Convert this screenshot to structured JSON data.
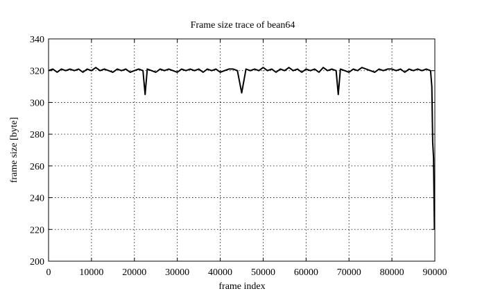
{
  "chart_data": {
    "type": "line",
    "title": "Frame size trace of bean64",
    "x_label": "frame index",
    "y_label": "frame size [byte]",
    "x": [
      0,
      1000,
      2000,
      3000,
      4000,
      5000,
      6000,
      7000,
      8000,
      9000,
      10000,
      11000,
      12000,
      13000,
      14000,
      15000,
      16000,
      17000,
      18000,
      19000,
      20000,
      21000,
      22000,
      22500,
      23000,
      24000,
      25000,
      26000,
      27000,
      28000,
      29000,
      30000,
      31000,
      32000,
      33000,
      34000,
      35000,
      36000,
      37000,
      38000,
      39000,
      40000,
      41000,
      42000,
      43000,
      44000,
      45000,
      46000,
      47000,
      48000,
      49000,
      50000,
      51000,
      52000,
      53000,
      54000,
      55000,
      56000,
      57000,
      58000,
      59000,
      60000,
      61000,
      62000,
      63000,
      64000,
      65000,
      66000,
      67000,
      67500,
      68000,
      69000,
      70000,
      71000,
      72000,
      73000,
      74000,
      75000,
      76000,
      77000,
      78000,
      79000,
      80000,
      81000,
      82000,
      83000,
      84000,
      85000,
      86000,
      87000,
      88000,
      89000,
      89300,
      89500,
      89700,
      89900
    ],
    "series": [
      {
        "color": "#000000",
        "values": [
          320,
          321,
          319,
          321,
          320,
          321,
          320,
          321,
          319,
          321,
          320,
          322,
          320,
          321,
          320,
          319,
          321,
          320,
          321,
          319,
          320,
          321,
          320,
          305,
          321,
          320,
          319,
          321,
          320,
          321,
          320,
          319,
          321,
          320,
          321,
          320,
          321,
          319,
          321,
          320,
          321,
          319,
          320,
          321,
          321,
          320,
          306,
          321,
          320,
          321,
          320,
          322,
          320,
          321,
          319,
          321,
          320,
          322,
          320,
          321,
          319,
          321,
          320,
          321,
          319,
          322,
          320,
          321,
          320,
          305,
          321,
          320,
          319,
          321,
          320,
          322,
          321,
          320,
          319,
          321,
          320,
          321,
          321,
          320,
          321,
          319,
          321,
          320,
          321,
          320,
          321,
          320,
          310,
          275,
          265,
          220
        ]
      }
    ],
    "xlim": [
      0,
      90000
    ],
    "ylim": [
      200,
      340
    ],
    "xticks": [
      0,
      10000,
      20000,
      30000,
      40000,
      50000,
      60000,
      70000,
      80000,
      90000
    ],
    "yticks": [
      200,
      220,
      240,
      260,
      280,
      300,
      320,
      340
    ],
    "grid": true
  }
}
